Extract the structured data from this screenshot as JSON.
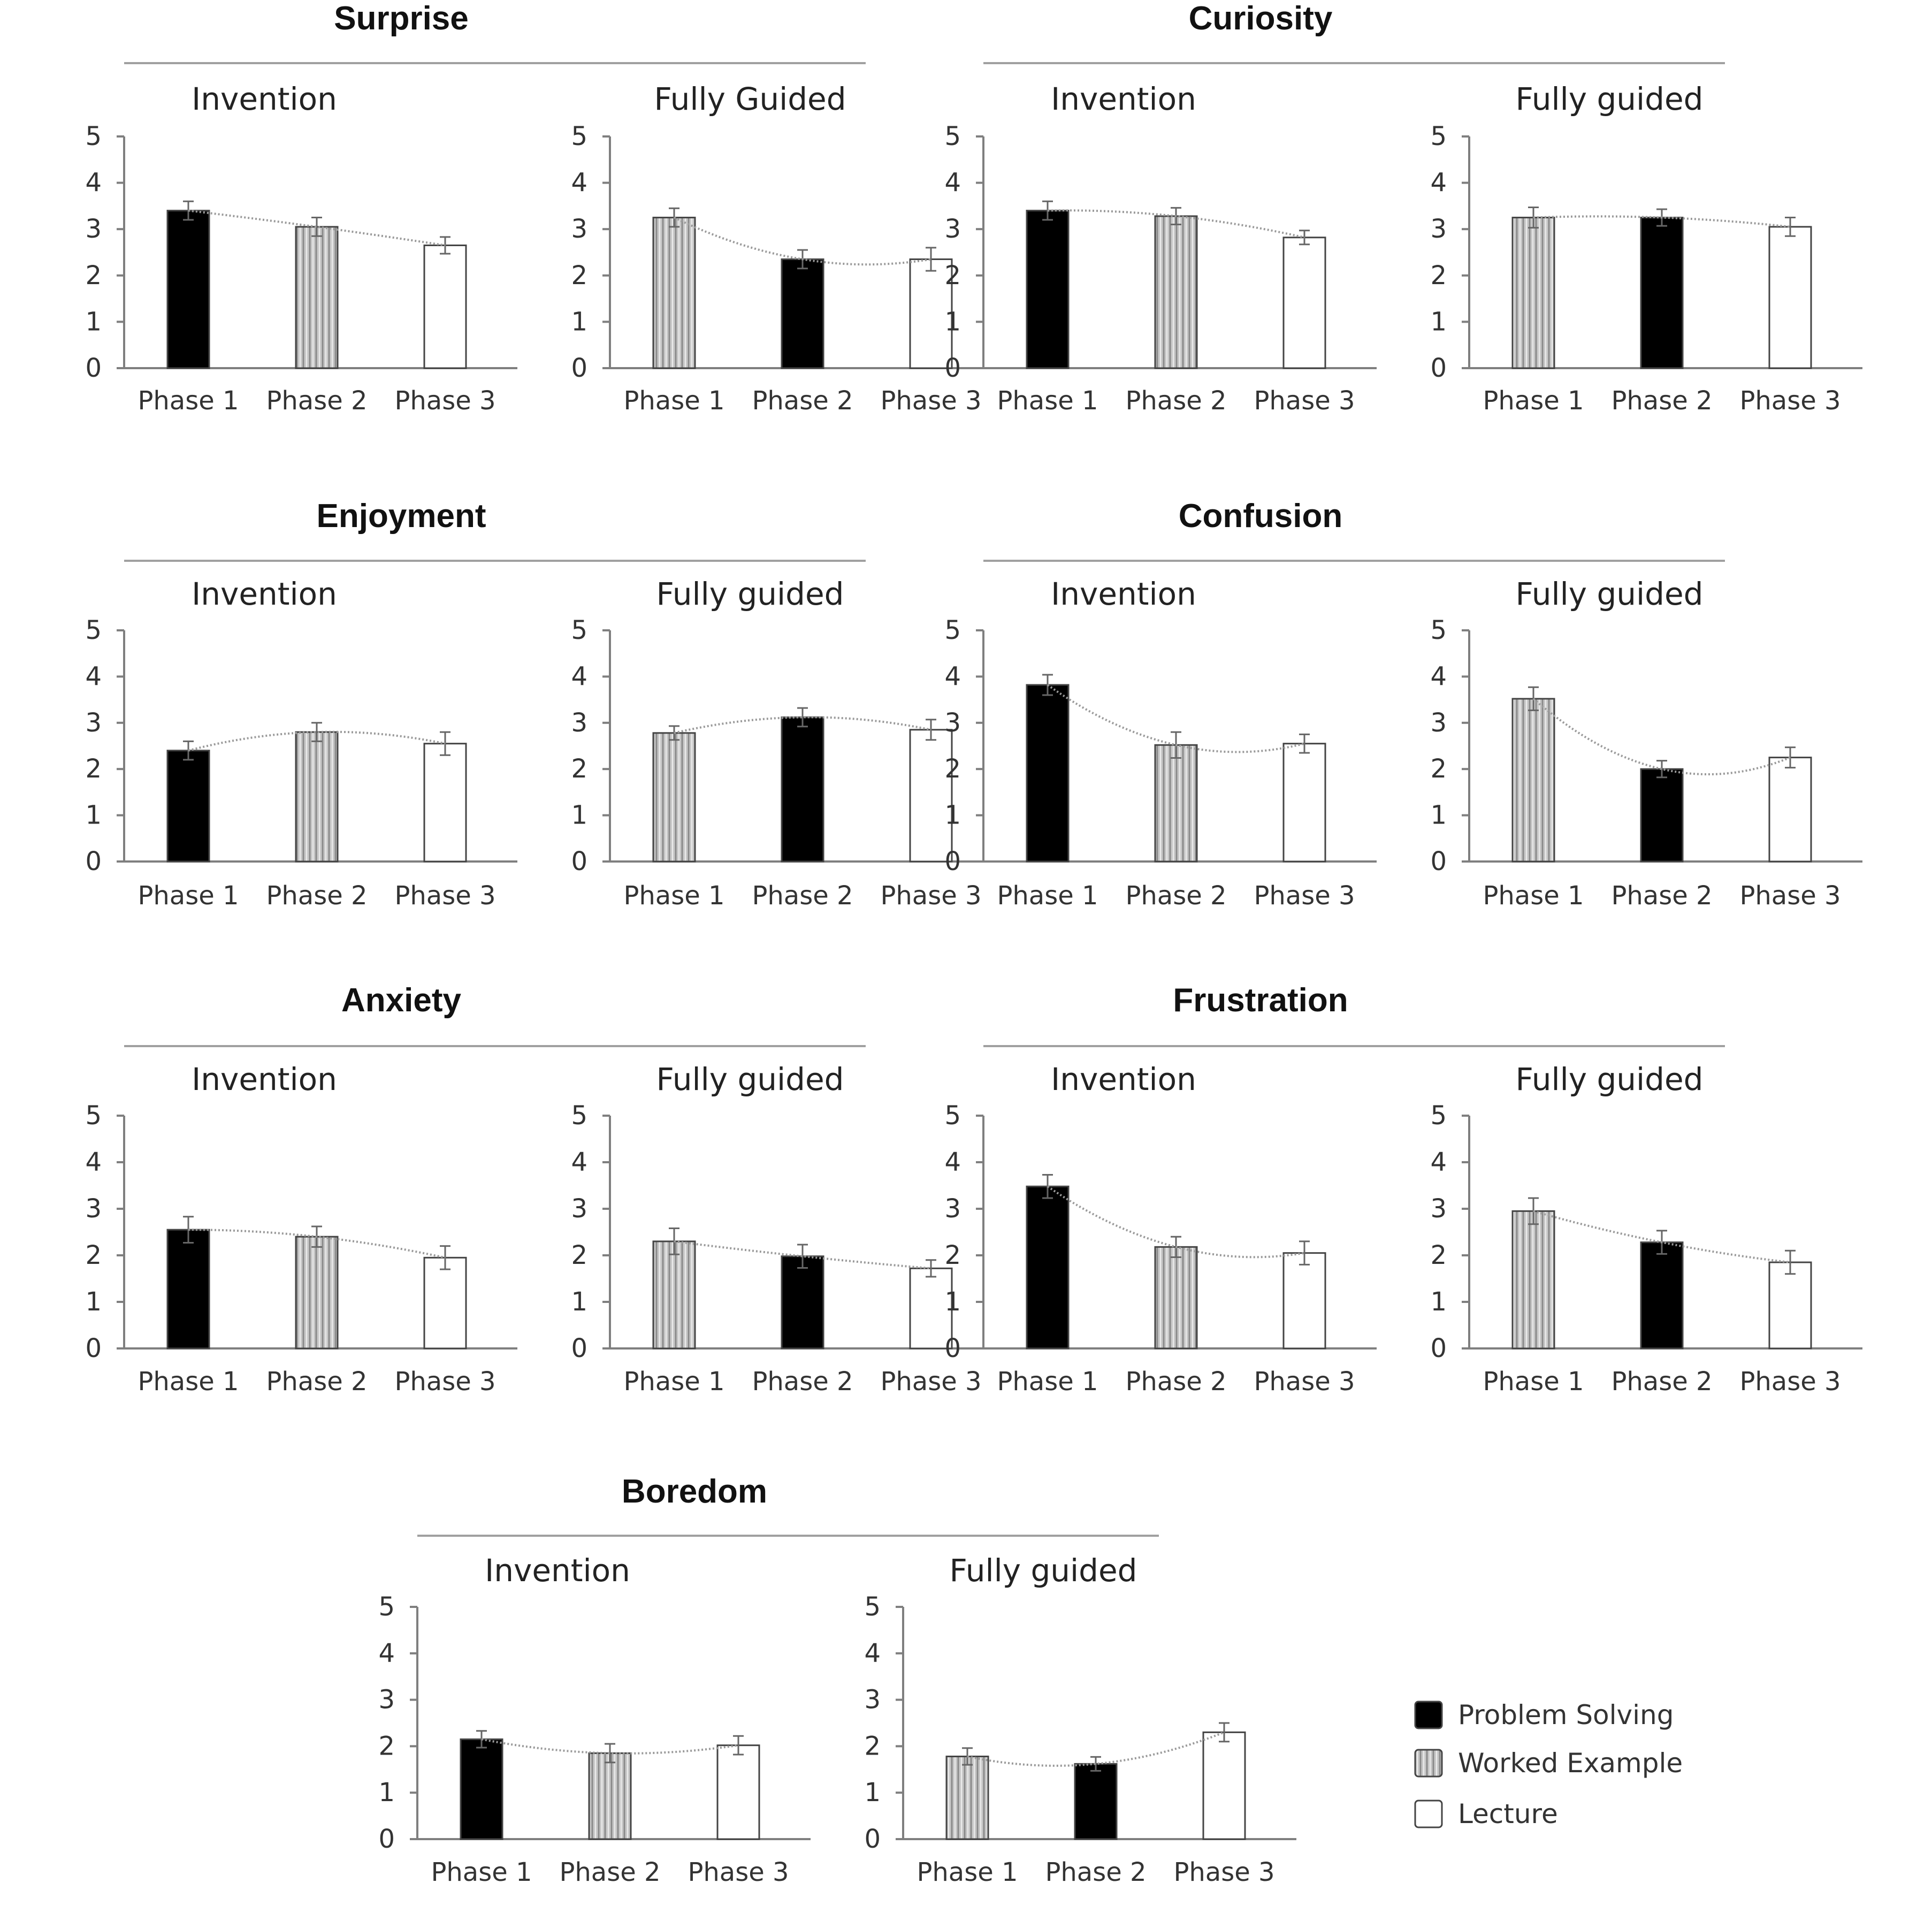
{
  "styles": {
    "Problem Solving": {
      "fill": "#000000",
      "pattern": false
    },
    "Worked Example": {
      "fill": "#c8c8c8",
      "pattern": true
    },
    "Lecture": {
      "fill": "#ffffff",
      "pattern": false
    }
  },
  "colors": {
    "axis": "#7f7f7f",
    "bar_edge": "#444444",
    "trend": "#9a9a9a",
    "rule": "#a0a0a0"
  },
  "legend": [
    {
      "key": "Problem Solving",
      "label": "Problem Solving"
    },
    {
      "key": "Worked Example",
      "label": "Worked Example"
    },
    {
      "key": "Lecture",
      "label": "Lecture"
    }
  ],
  "chart_data": [
    {
      "group": "Surprise",
      "panels": [
        {
          "title": "Invention",
          "type": "bar",
          "categories": [
            "Phase 1",
            "Phase 2",
            "Phase 3"
          ],
          "conditions": [
            "Problem Solving",
            "Worked Example",
            "Lecture"
          ],
          "values": [
            3.4,
            3.05,
            2.65
          ],
          "errors": [
            0.2,
            0.2,
            0.18
          ],
          "ylim": [
            0,
            5
          ],
          "yticks": [
            "0",
            "1",
            "2",
            "3",
            "4",
            "5"
          ]
        },
        {
          "title": "Fully Guided",
          "type": "bar",
          "categories": [
            "Phase 1",
            "Phase 2",
            "Phase 3"
          ],
          "conditions": [
            "Worked Example",
            "Problem Solving",
            "Lecture"
          ],
          "values": [
            3.25,
            2.35,
            2.35
          ],
          "errors": [
            0.2,
            0.2,
            0.25
          ],
          "ylim": [
            0,
            5
          ],
          "yticks": [
            "0",
            "1",
            "2",
            "3",
            "4",
            "5"
          ]
        }
      ]
    },
    {
      "group": "Curiosity",
      "panels": [
        {
          "title": "Invention",
          "type": "bar",
          "categories": [
            "Phase 1",
            "Phase 2",
            "Phase 3"
          ],
          "conditions": [
            "Problem Solving",
            "Worked Example",
            "Lecture"
          ],
          "values": [
            3.4,
            3.28,
            2.82
          ],
          "errors": [
            0.2,
            0.18,
            0.15
          ],
          "ylim": [
            0,
            5
          ],
          "yticks": [
            "0",
            "1",
            "2",
            "3",
            "4",
            "5"
          ]
        },
        {
          "title": "Fully guided",
          "type": "bar",
          "categories": [
            "Phase 1",
            "Phase 2",
            "Phase 3"
          ],
          "conditions": [
            "Worked Example",
            "Problem Solving",
            "Lecture"
          ],
          "values": [
            3.25,
            3.25,
            3.05
          ],
          "errors": [
            0.22,
            0.18,
            0.2
          ],
          "ylim": [
            0,
            5
          ],
          "yticks": [
            "0",
            "1",
            "2",
            "3",
            "4",
            "5"
          ]
        }
      ]
    },
    {
      "group": "Enjoyment",
      "panels": [
        {
          "title": "Invention",
          "type": "bar",
          "categories": [
            "Phase 1",
            "Phase 2",
            "Phase 3"
          ],
          "conditions": [
            "Problem Solving",
            "Worked Example",
            "Lecture"
          ],
          "values": [
            2.4,
            2.8,
            2.55
          ],
          "errors": [
            0.2,
            0.2,
            0.25
          ],
          "ylim": [
            0,
            5
          ],
          "yticks": [
            "0",
            "1",
            "2",
            "3",
            "4",
            "5"
          ]
        },
        {
          "title": "Fully guided",
          "type": "bar",
          "categories": [
            "Phase 1",
            "Phase 2",
            "Phase 3"
          ],
          "conditions": [
            "Worked Example",
            "Problem Solving",
            "Lecture"
          ],
          "values": [
            2.78,
            3.12,
            2.85
          ],
          "errors": [
            0.15,
            0.2,
            0.22
          ],
          "ylim": [
            0,
            5
          ],
          "yticks": [
            "0",
            "1",
            "2",
            "3",
            "4",
            "5"
          ]
        }
      ]
    },
    {
      "group": "Confusion",
      "panels": [
        {
          "title": "Invention",
          "type": "bar",
          "categories": [
            "Phase 1",
            "Phase 2",
            "Phase 3"
          ],
          "conditions": [
            "Problem Solving",
            "Worked Example",
            "Lecture"
          ],
          "values": [
            3.82,
            2.52,
            2.55
          ],
          "errors": [
            0.22,
            0.28,
            0.2
          ],
          "ylim": [
            0,
            5
          ],
          "yticks": [
            "0",
            "1",
            "2",
            "3",
            "4",
            "5"
          ]
        },
        {
          "title": "Fully guided",
          "type": "bar",
          "categories": [
            "Phase 1",
            "Phase 2",
            "Phase 3"
          ],
          "conditions": [
            "Worked Example",
            "Problem Solving",
            "Lecture"
          ],
          "values": [
            3.52,
            2.0,
            2.25
          ],
          "errors": [
            0.25,
            0.18,
            0.22
          ],
          "ylim": [
            0,
            5
          ],
          "yticks": [
            "0",
            "1",
            "2",
            "3",
            "4",
            "5"
          ]
        }
      ]
    },
    {
      "group": "Anxiety",
      "panels": [
        {
          "title": "Invention",
          "type": "bar",
          "categories": [
            "Phase 1",
            "Phase 2",
            "Phase 3"
          ],
          "conditions": [
            "Problem Solving",
            "Worked Example",
            "Lecture"
          ],
          "values": [
            2.55,
            2.4,
            1.95
          ],
          "errors": [
            0.28,
            0.22,
            0.25
          ],
          "ylim": [
            0,
            5
          ],
          "yticks": [
            "0",
            "1",
            "2",
            "3",
            "4",
            "5"
          ]
        },
        {
          "title": "Fully guided",
          "type": "bar",
          "categories": [
            "Phase 1",
            "Phase 2",
            "Phase 3"
          ],
          "conditions": [
            "Worked Example",
            "Problem Solving",
            "Lecture"
          ],
          "values": [
            2.3,
            1.98,
            1.72
          ],
          "errors": [
            0.28,
            0.25,
            0.18
          ],
          "ylim": [
            0,
            5
          ],
          "yticks": [
            "0",
            "1",
            "2",
            "3",
            "4",
            "5"
          ]
        }
      ]
    },
    {
      "group": "Frustration",
      "panels": [
        {
          "title": "Invention",
          "type": "bar",
          "categories": [
            "Phase 1",
            "Phase 2",
            "Phase 3"
          ],
          "conditions": [
            "Problem Solving",
            "Worked Example",
            "Lecture"
          ],
          "values": [
            3.48,
            2.18,
            2.05
          ],
          "errors": [
            0.25,
            0.22,
            0.25
          ],
          "ylim": [
            0,
            5
          ],
          "yticks": [
            "0",
            "1",
            "2",
            "3",
            "4",
            "5"
          ]
        },
        {
          "title": "Fully guided",
          "type": "bar",
          "categories": [
            "Phase 1",
            "Phase 2",
            "Phase 3"
          ],
          "conditions": [
            "Worked Example",
            "Problem Solving",
            "Lecture"
          ],
          "values": [
            2.95,
            2.28,
            1.85
          ],
          "errors": [
            0.28,
            0.25,
            0.25
          ],
          "ylim": [
            0,
            5
          ],
          "yticks": [
            "0",
            "1",
            "2",
            "3",
            "4",
            "5"
          ]
        }
      ]
    },
    {
      "group": "Boredom",
      "panels": [
        {
          "title": "Invention",
          "type": "bar",
          "categories": [
            "Phase 1",
            "Phase 2",
            "Phase 3"
          ],
          "conditions": [
            "Problem Solving",
            "Worked Example",
            "Lecture"
          ],
          "values": [
            2.15,
            1.85,
            2.02
          ],
          "errors": [
            0.18,
            0.2,
            0.2
          ],
          "ylim": [
            0,
            5
          ],
          "yticks": [
            "0",
            "1",
            "2",
            "3",
            "4",
            "5"
          ]
        },
        {
          "title": "Fully guided",
          "type": "bar",
          "categories": [
            "Phase 1",
            "Phase 2",
            "Phase 3"
          ],
          "conditions": [
            "Worked Example",
            "Problem Solving",
            "Lecture"
          ],
          "values": [
            1.78,
            1.62,
            2.3
          ],
          "errors": [
            0.18,
            0.15,
            0.2
          ],
          "ylim": [
            0,
            5
          ],
          "yticks": [
            "0",
            "1",
            "2",
            "3",
            "4",
            "5"
          ]
        }
      ]
    }
  ]
}
